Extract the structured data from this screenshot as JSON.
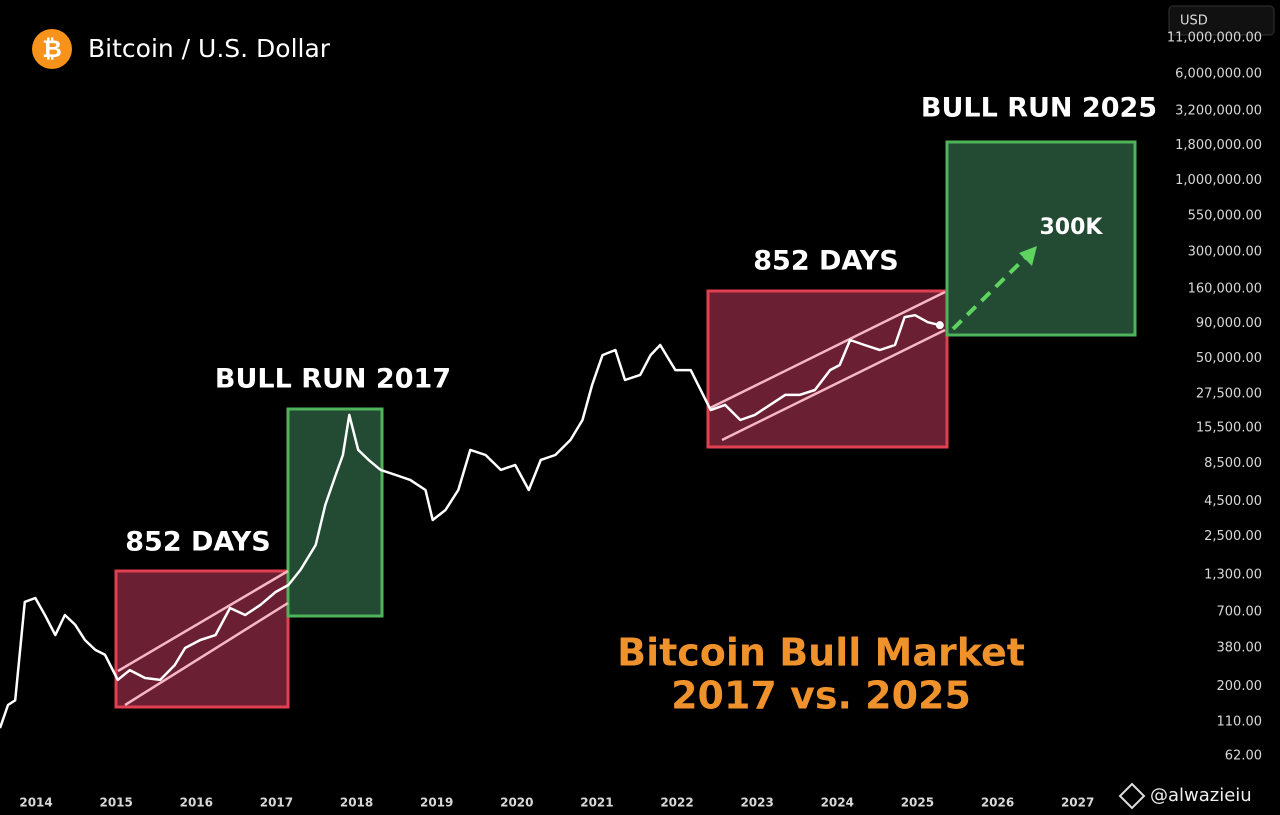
{
  "chart_data": {
    "type": "line",
    "title": "Bitcoin / U.S. Dollar",
    "currency": "USD",
    "yscale": "log",
    "color": "#ffffff",
    "x": [
      2013.55,
      2013.65,
      2013.74,
      2013.86,
      2013.99,
      2014.11,
      2014.24,
      2014.36,
      2014.49,
      2014.61,
      2014.74,
      2014.86,
      2015.02,
      2015.17,
      2015.36,
      2015.55,
      2015.73,
      2015.86,
      2016.05,
      2016.24,
      2016.42,
      2016.61,
      2016.8,
      2016.99,
      2017.15,
      2017.3,
      2017.49,
      2017.61,
      2017.74,
      2017.83,
      2017.91,
      2018.02,
      2018.15,
      2018.3,
      2018.49,
      2018.67,
      2018.86,
      2018.95,
      2019.11,
      2019.27,
      2019.42,
      2019.61,
      2019.8,
      2019.98,
      2020.15,
      2020.3,
      2020.48,
      2020.67,
      2020.82,
      2020.94,
      2021.07,
      2021.23,
      2021.35,
      2021.54,
      2021.67,
      2021.79,
      2021.98,
      2022.17,
      2022.42,
      2022.6,
      2022.79,
      2022.97,
      2023.16,
      2023.35,
      2023.53,
      2023.72,
      2023.91,
      2024.03,
      2024.16,
      2024.34,
      2024.53,
      2024.72,
      2024.84,
      2024.97,
      2025.13,
      2025.28
    ],
    "values": [
      99,
      146,
      158,
      828,
      885,
      665,
      474,
      665,
      562,
      436,
      369,
      340,
      223,
      263,
      230,
      223,
      286,
      381,
      436,
      474,
      748,
      665,
      787,
      979,
      1101,
      1419,
      2160,
      4236,
      7017,
      9817,
      19270,
      10690,
      9036,
      7640,
      7017,
      6457,
      5450,
      3289,
      3890,
      5450,
      10690,
      9817,
      7640,
      8300,
      5450,
      9036,
      9817,
      12650,
      17700,
      31900,
      52800,
      57500,
      34700,
      37800,
      52800,
      62500,
      41000,
      41000,
      20900,
      22800,
      17700,
      19270,
      22800,
      27000,
      27000,
      29300,
      41000,
      44700,
      68000,
      62500,
      57500,
      62500,
      100000,
      103300,
      91800,
      87300
    ],
    "xlim": [
      2013.55,
      2028.09
    ],
    "xticks": [
      2014,
      2015,
      2016,
      2017,
      2018,
      2019,
      2020,
      2021,
      2022,
      2023,
      2024,
      2025,
      2026,
      2027
    ],
    "ylim": [
      38,
      20800000
    ],
    "yticks": [
      {
        "value": 62,
        "label": "62.00"
      },
      {
        "value": 110,
        "label": "110.00"
      },
      {
        "value": 200,
        "label": "200.00"
      },
      {
        "value": 380,
        "label": "380.00"
      },
      {
        "value": 700,
        "label": "700.00"
      },
      {
        "value": 1300,
        "label": "1,300.00"
      },
      {
        "value": 2500,
        "label": "2,500.00"
      },
      {
        "value": 4500,
        "label": "4,500.00"
      },
      {
        "value": 8500,
        "label": "8,500.00"
      },
      {
        "value": 15500,
        "label": "15,500.00"
      },
      {
        "value": 27500,
        "label": "27,500.00"
      },
      {
        "value": 50000,
        "label": "50,000.00"
      },
      {
        "value": 90000,
        "label": "90,000.00"
      },
      {
        "value": 160000,
        "label": "160,000.00"
      },
      {
        "value": 300000,
        "label": "300,000.00"
      },
      {
        "value": 550000,
        "label": "550,000.00"
      },
      {
        "value": 1000000,
        "label": "1,000,000.00"
      },
      {
        "value": 1800000,
        "label": "1,800,000.00"
      },
      {
        "value": 3200000,
        "label": "3,200,000.00"
      },
      {
        "value": 6000000,
        "label": "6,000,000.00"
      },
      {
        "value": 11000000,
        "label": "11,000,000.00"
      }
    ],
    "annotations": {
      "days_1": "852 DAYS",
      "bull_2017": "BULL RUN 2017",
      "days_2": "852 DAYS",
      "bull_2025": "BULL RUN 2025",
      "target": "300K",
      "headline_1": "Bitcoin Bull Market",
      "headline_2": "2017 vs. 2025"
    },
    "watermark": "@alwazieiu"
  }
}
